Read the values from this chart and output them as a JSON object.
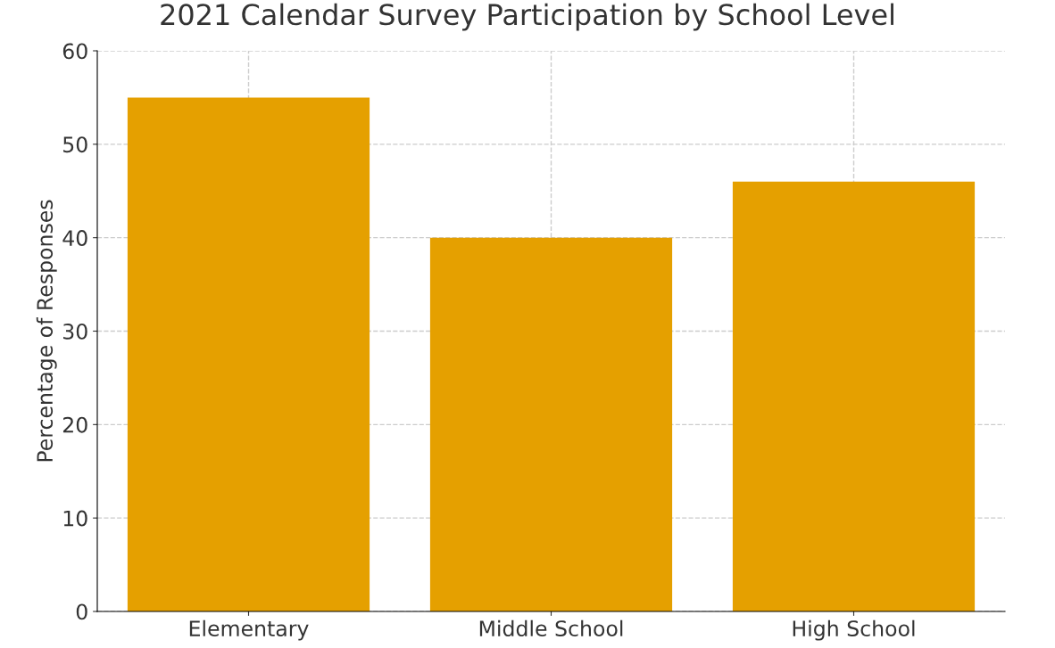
{
  "chart_data": {
    "type": "bar",
    "title": "2021 Calendar Survey Participation by School Level",
    "ylabel": "Percentage of Responses",
    "categories": [
      "Elementary",
      "Middle School",
      "High School"
    ],
    "values": [
      55,
      40,
      46
    ],
    "color": "#e5a000",
    "ylim": [
      0,
      60
    ],
    "yticks": [
      0,
      10,
      20,
      30,
      40,
      50,
      60
    ],
    "grid": true
  }
}
